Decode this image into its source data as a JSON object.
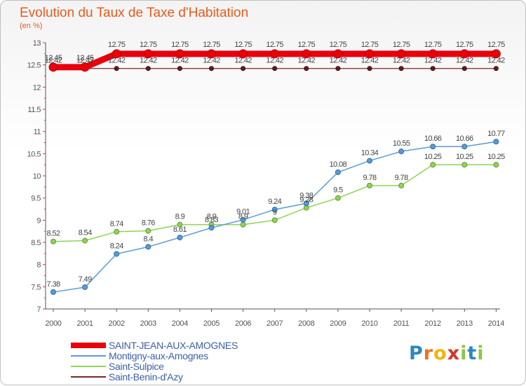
{
  "chart_data": {
    "type": "line",
    "title": "Evolution du Taux de Taxe d'Habitation",
    "subtitle": "(en %)",
    "x": [
      "2000",
      "2001",
      "2002",
      "2003",
      "2004",
      "2005",
      "2006",
      "2007",
      "2008",
      "2009",
      "2010",
      "2011",
      "2012",
      "2013",
      "2014"
    ],
    "ylim": [
      7,
      13
    ],
    "yticks": [
      "7",
      "7.5",
      "8",
      "8.5",
      "9",
      "9.5",
      "10",
      "10.5",
      "11",
      "11.5",
      "12",
      "12.5",
      "13"
    ],
    "series": [
      {
        "name": "SAINT-JEAN-AUX-AMOGNES",
        "color": "#e8000c",
        "values": [
          12.45,
          12.45,
          12.75,
          12.75,
          12.75,
          12.75,
          12.75,
          12.75,
          12.75,
          12.75,
          12.75,
          12.75,
          12.75,
          12.75,
          12.75
        ],
        "labels": [
          "12.45",
          "12.45",
          "12.75",
          "12.75",
          "12.75",
          "12.75",
          "12.75",
          "12.75",
          "12.75",
          "12.75",
          "12.75",
          "12.75",
          "12.75",
          "12.75",
          "12.75"
        ]
      },
      {
        "name": "Montigny-aux-Amognes",
        "color": "#5b9bd5",
        "values": [
          7.38,
          7.49,
          8.24,
          8.4,
          8.61,
          8.83,
          9.01,
          9.24,
          9.38,
          10.08,
          10.34,
          10.55,
          10.66,
          10.66,
          10.77
        ],
        "labels": [
          "7.38",
          "7.49",
          "8.24",
          "8.4",
          "8.61",
          "8.83",
          "9.01",
          "9.24",
          "9.38",
          "10.08",
          "10.34",
          "10.55",
          "10.66",
          "10.66",
          "10.77"
        ]
      },
      {
        "name": "Saint-Sulpice",
        "color": "#8ed458",
        "values": [
          8.52,
          8.54,
          8.74,
          8.76,
          8.9,
          8.9,
          8.9,
          9,
          9.28,
          9.5,
          9.78,
          9.78,
          10.25,
          10.25,
          10.25
        ],
        "labels": [
          "8.52",
          "8.54",
          "8.74",
          "8.76",
          "8.9",
          "8.9",
          "8.9",
          "9",
          "9.28",
          "9.5",
          "9.78",
          "9.78",
          "10.25",
          "10.25",
          "10.25"
        ]
      },
      {
        "name": "Saint-Benin-d'Azy",
        "color": "#7a2a2a",
        "values": [
          12.42,
          12.42,
          12.42,
          12.42,
          12.42,
          12.42,
          12.42,
          12.42,
          12.42,
          12.42,
          12.42,
          12.42,
          12.42,
          12.42,
          12.42
        ],
        "labels": [
          "12.42",
          "12.42",
          "12.42",
          "12.42",
          "12.42",
          "12.42",
          "12.42",
          "12.42",
          "12.42",
          "12.42",
          "12.42",
          "12.42",
          "12.42",
          "12.42",
          "12.42"
        ]
      }
    ],
    "legend_position": "bottom-left",
    "grid": false
  },
  "logo": {
    "letters": [
      "P",
      "r",
      "o",
      "x",
      "i",
      "t",
      "i"
    ],
    "colors": [
      "#2e86c1",
      "#e8731c",
      "#f3b30a",
      "#d6332a",
      "#8ec641",
      "#2e86c1",
      "#8ec641"
    ]
  }
}
